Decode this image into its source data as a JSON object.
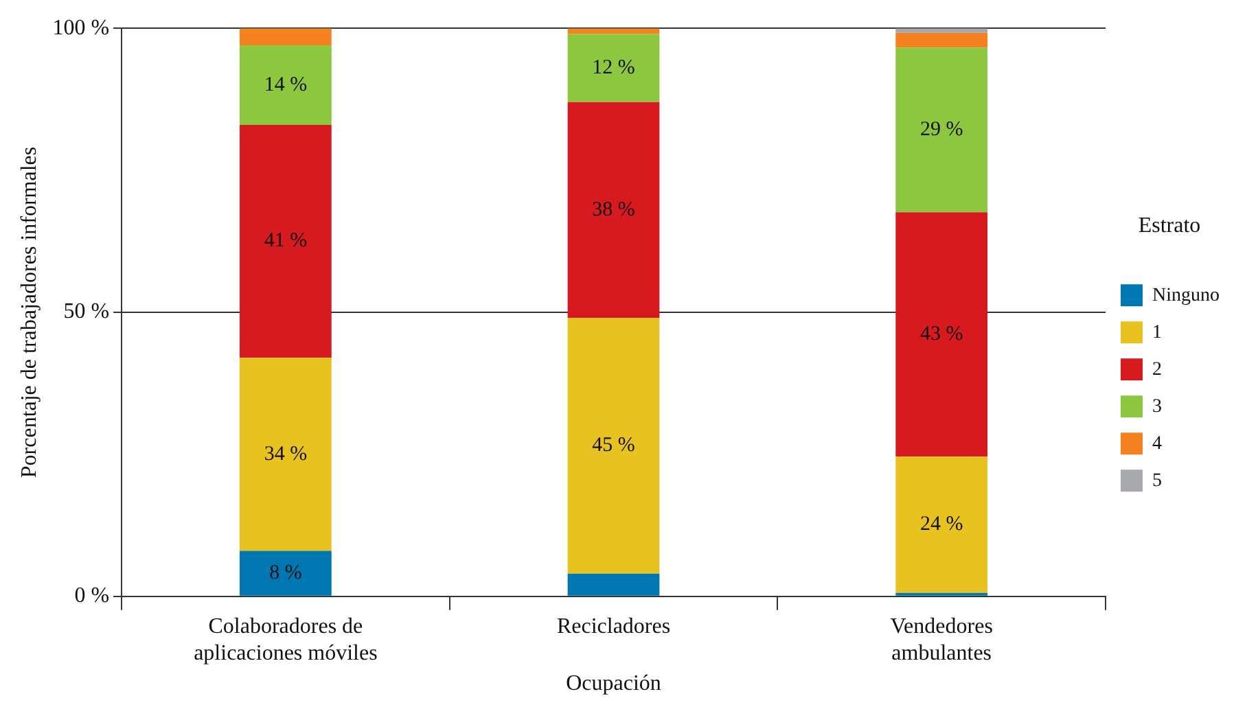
{
  "chart_data": {
    "type": "bar",
    "stacked": true,
    "xlabel": "Ocupación",
    "ylabel": "Porcentaje de trabajadores informales",
    "legend_title": "Estrato",
    "legend": "right",
    "grid": "y",
    "categories": [
      "Colaboradores de aplicaciones móviles",
      "Recicladores",
      "Vendedores ambulantes"
    ],
    "ylim": [
      0,
      100
    ],
    "yticks": [
      {
        "value": 0,
        "label": "0 %"
      },
      {
        "value": 50,
        "label": "50 %"
      },
      {
        "value": 100,
        "label": "100 %"
      }
    ],
    "series": [
      {
        "name": "Ninguno",
        "color": "#0077b0",
        "values": [
          8,
          4,
          0.6
        ],
        "value_labels": [
          "8 %",
          null,
          null
        ]
      },
      {
        "name": "1",
        "color": "#e8c21e",
        "values": [
          34,
          45,
          24
        ],
        "value_labels": [
          "34 %",
          "45 %",
          "24 %"
        ]
      },
      {
        "name": "2",
        "color": "#d71920",
        "values": [
          41,
          38,
          43
        ],
        "value_labels": [
          "41 %",
          "38 %",
          "43 %"
        ]
      },
      {
        "name": "3",
        "color": "#8dc63f",
        "values": [
          14,
          12,
          29
        ],
        "value_labels": [
          "14 %",
          "12 %",
          "29 %"
        ]
      },
      {
        "name": "4",
        "color": "#f58220",
        "values": [
          3,
          1,
          2.6
        ],
        "value_labels": [
          null,
          null,
          null
        ]
      },
      {
        "name": "5",
        "color": "#a7a9ac",
        "values": [
          0,
          0,
          0.8
        ],
        "value_labels": [
          null,
          null,
          null
        ]
      }
    ]
  }
}
